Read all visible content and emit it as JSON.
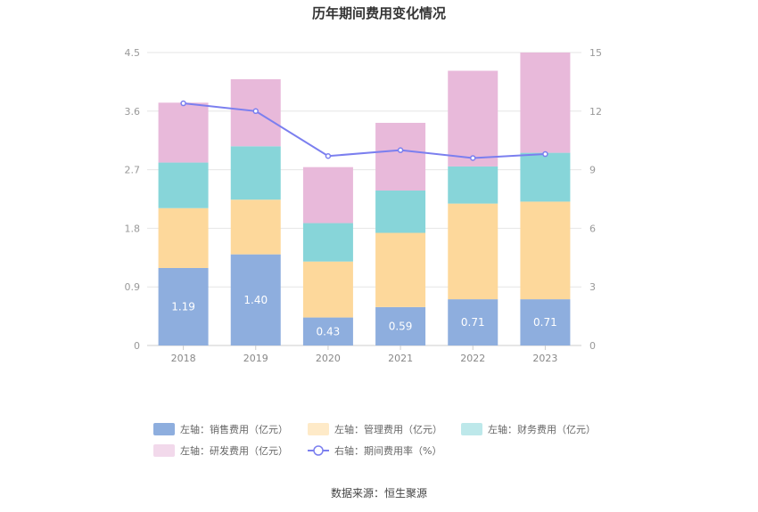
{
  "chart_data": {
    "type": "bar",
    "title": "历年期间费用变化情况",
    "categories": [
      "2018",
      "2019",
      "2020",
      "2021",
      "2022",
      "2023"
    ],
    "y_left": {
      "ticks": [
        "0",
        "0.9",
        "1.8",
        "2.7",
        "3.6",
        "4.5"
      ],
      "min": 0,
      "max": 4.5
    },
    "y_right": {
      "ticks": [
        "0",
        "3",
        "6",
        "9",
        "12",
        "15"
      ],
      "min": 0,
      "max": 15
    },
    "stacked_series": [
      {
        "name": "左轴：销售费用（亿元）",
        "color": "#8eaede",
        "values": [
          1.19,
          1.4,
          0.43,
          0.59,
          0.71,
          0.71
        ],
        "labels": [
          "1.19",
          "1.40",
          "0.43",
          "0.59",
          "0.71",
          "0.71"
        ]
      },
      {
        "name": "左轴：管理费用（亿元）",
        "color": "#fdd89b",
        "values": [
          0.92,
          0.84,
          0.86,
          1.14,
          1.47,
          1.5
        ]
      },
      {
        "name": "左轴：财务费用（亿元）",
        "color": "#87d5d9",
        "values": [
          0.7,
          0.82,
          0.59,
          0.65,
          0.57,
          0.75
        ]
      },
      {
        "name": "左轴：研发费用（亿元）",
        "color": "#e8b9da",
        "values": [
          0.92,
          1.03,
          0.86,
          1.04,
          1.47,
          1.54
        ]
      }
    ],
    "line_series": {
      "name": "右轴：期间费用率（%）",
      "color": "#7b7fef",
      "values": [
        12.4,
        12.0,
        9.7,
        10.0,
        9.6,
        9.8
      ]
    },
    "legend_position": "bottom",
    "grid": true,
    "source": "数据来源：恒生聚源"
  }
}
